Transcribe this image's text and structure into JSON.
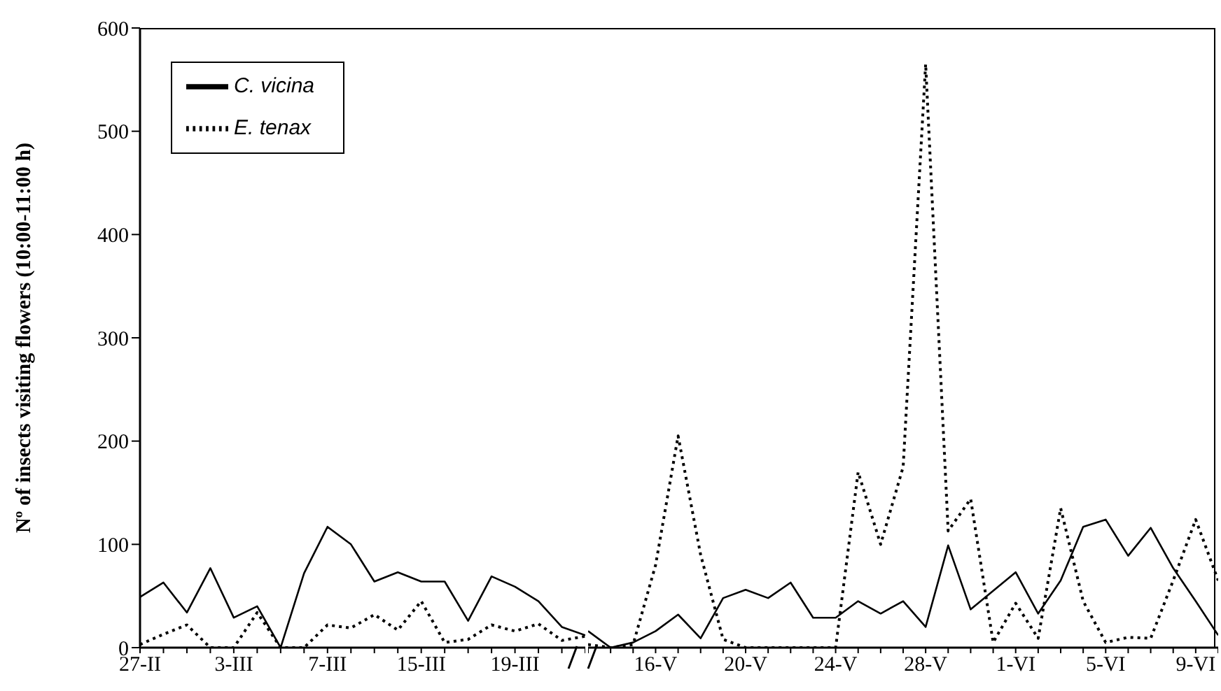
{
  "chart_data": [
    {
      "type": "line",
      "ylabel": "Nº of insects visiting flowers (10:00-11:00 h)",
      "categories": [
        "27-II",
        null,
        null,
        null,
        "3-III",
        null,
        null,
        null,
        "7-III",
        null,
        null,
        null,
        "15-III",
        null,
        null,
        null,
        "19-III",
        null,
        null,
        null
      ],
      "ylim": [
        0,
        600
      ],
      "yticks": [
        0,
        100,
        200,
        300,
        400,
        500,
        600
      ],
      "grid": false,
      "legend": "top left",
      "marker": "none",
      "series": [
        {
          "name": "C. vicina",
          "color": "#000000",
          "line_style": "solid",
          "values": [
            49,
            63,
            34,
            77,
            29,
            40,
            0,
            72,
            117,
            100,
            64,
            73,
            64,
            64,
            26,
            69,
            59,
            45,
            20,
            12
          ]
        },
        {
          "name": "E. tenax",
          "color": "#000000",
          "line_style": "dotted",
          "values": [
            3,
            13,
            22,
            0,
            0,
            34,
            0,
            0,
            22,
            19,
            32,
            17,
            45,
            5,
            8,
            22,
            16,
            23,
            7,
            11
          ]
        }
      ]
    },
    {
      "type": "line",
      "categories": [
        null,
        null,
        null,
        "16-V",
        null,
        null,
        null,
        "20-V",
        null,
        null,
        null,
        "24-V",
        null,
        null,
        null,
        "28-V",
        null,
        null,
        null,
        "1-VI",
        null,
        null,
        null,
        "5-VI",
        null,
        null,
        null,
        "9-VI",
        null
      ],
      "ylim": [
        0,
        600
      ],
      "tick_labels": "x",
      "grid": false,
      "legend": false,
      "marker": "none",
      "series": [
        {
          "color": "#000000",
          "line_style": "solid",
          "values": [
            16,
            0,
            5,
            16,
            32,
            9,
            48,
            56,
            48,
            63,
            29,
            29,
            45,
            33,
            45,
            20,
            99,
            37,
            55,
            73,
            33,
            65,
            117,
            124,
            89,
            116,
            77,
            45,
            12
          ]
        },
        {
          "color": "#000000",
          "line_style": "dotted",
          "values": [
            3,
            0,
            3,
            80,
            205,
            90,
            8,
            0,
            0,
            0,
            0,
            0,
            170,
            100,
            175,
            565,
            113,
            144,
            5,
            43,
            9,
            135,
            45,
            5,
            10,
            9,
            65,
            124,
            65
          ]
        }
      ]
    }
  ]
}
